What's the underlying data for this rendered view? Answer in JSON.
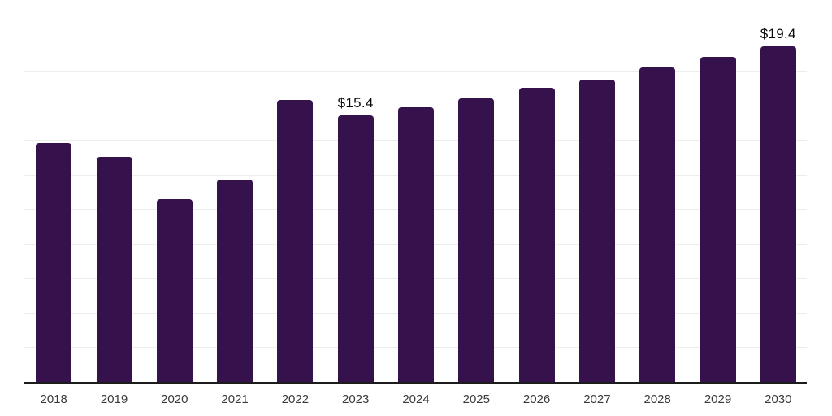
{
  "chart_data": {
    "type": "bar",
    "title": "",
    "xlabel": "",
    "ylabel": "",
    "categories": [
      "2018",
      "2019",
      "2020",
      "2021",
      "2022",
      "2023",
      "2024",
      "2025",
      "2026",
      "2027",
      "2028",
      "2029",
      "2030"
    ],
    "values": [
      13.8,
      13.0,
      10.6,
      11.7,
      16.3,
      15.4,
      15.9,
      16.4,
      17.0,
      17.5,
      18.2,
      18.8,
      19.4
    ],
    "data_labels": [
      "",
      "",
      "",
      "",
      "",
      "$15.4",
      "",
      "",
      "",
      "",
      "",
      "",
      "$19.4"
    ],
    "ylim": [
      0,
      22
    ],
    "grid_step": 2,
    "grid": "horizontal",
    "legend_position": "none",
    "colors": {
      "bar": "#35124b",
      "gridline": "#ededed",
      "axis_line": "#1c1c1c",
      "tick_label": "#3a3a3a",
      "value_label": "#0a0a0a",
      "background": "#ffffff"
    }
  }
}
